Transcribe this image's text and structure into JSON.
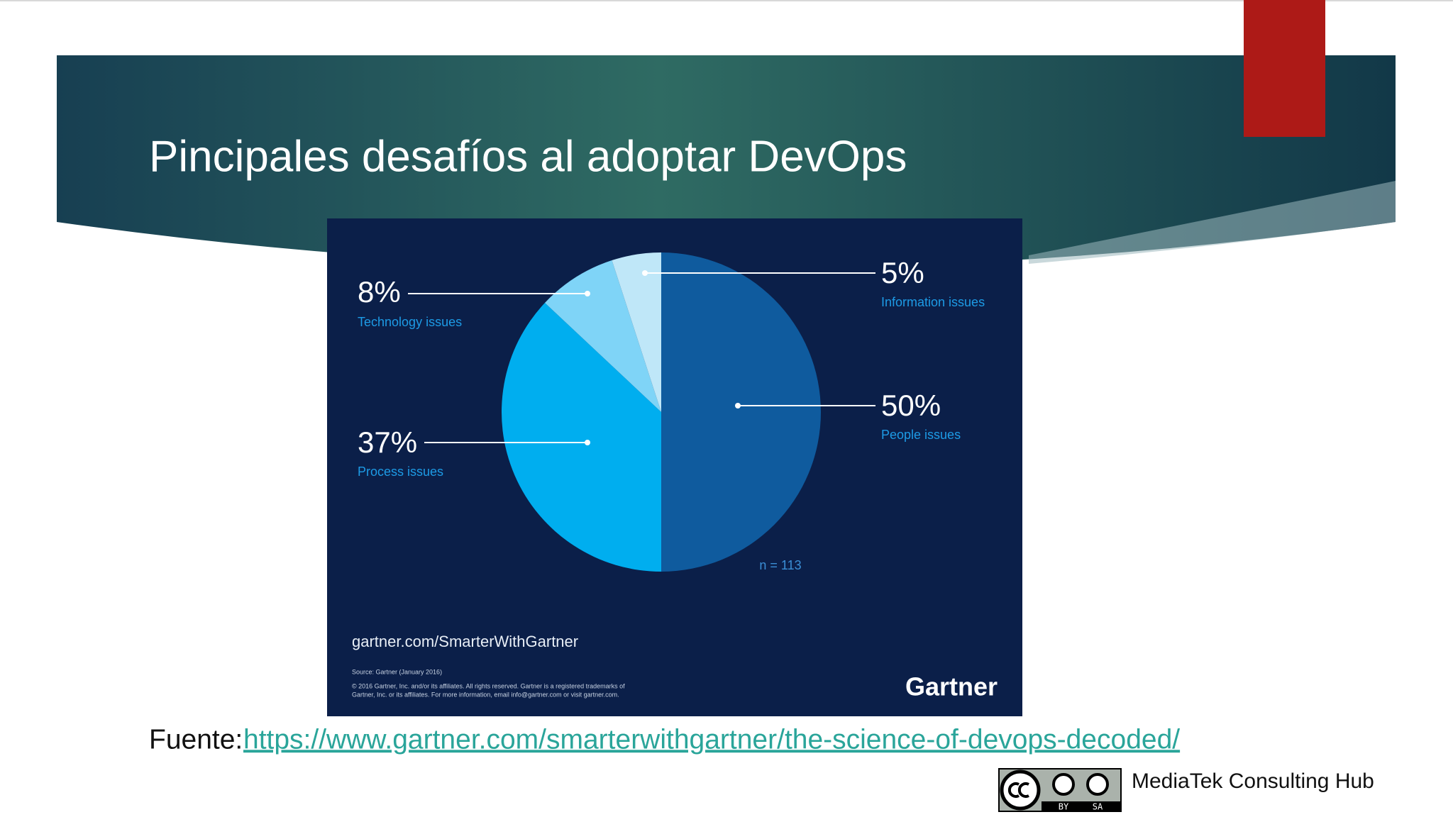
{
  "slide": {
    "title": "Pincipales desafíos al adoptar DevOps"
  },
  "chart_data": {
    "type": "pie",
    "categories": [
      "People issues",
      "Process issues",
      "Technology issues",
      "Information issues"
    ],
    "values": [
      50,
      37,
      8,
      5
    ],
    "value_labels": [
      "50%",
      "37%",
      "8%",
      "5%"
    ],
    "colors": [
      "#0f5b9e",
      "#00aeef",
      "#7fd4f7",
      "#bfe7f8"
    ],
    "note": "n = 113",
    "site": "gartner.com/SmarterWithGartner",
    "source": "Source: Gartner (January 2016)",
    "copyright": [
      "© 2016 Gartner, Inc. and/or its affiliates. All rights reserved. Gartner is a registered trademarks of",
      "Gartner, Inc. or its affiliates. For more information, email info@gartner.com or visit gartner.com."
    ],
    "brand": "Gartner"
  },
  "footer": {
    "source_label": "Fuente:",
    "source_url": "https://www.gartner.com/smarterwithgartner/the-science-of-devops-decoded/",
    "license": [
      "BY",
      "SA"
    ],
    "author": "MediaTek Consulting Hub"
  }
}
